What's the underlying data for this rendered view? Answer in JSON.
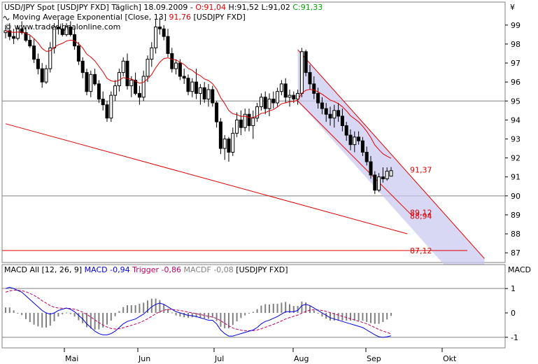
{
  "header": {
    "line1": {
      "prefix": "USD/JPY Spot [USDJPY FXD] Täglich] 18.09.2009 -",
      "open": "O:91,04",
      "high": "H:91,52",
      "low": "L:91,02",
      "close": "C:91,33"
    },
    "line2": {
      "prefix": "Moving Average Exponential [Close, 13]",
      "value": "91,76",
      "suffix": "[USDJPY FXD]"
    },
    "line3": "© www.tradesignalonline.com"
  },
  "macd_header": {
    "name": "MACD All [12, 26, 9]",
    "macd": "MACD -0,94",
    "trigger": "Trigger -0,86",
    "macdf": "MACDF -0,08",
    "symbol": "[USDJPY FXD]"
  },
  "colors": {
    "candle": "#000000",
    "ema": "#e00000",
    "trendline": "#e00000",
    "channel_fill": "#c8c8f0",
    "macd": "#0000e0",
    "trigger": "#c00060",
    "histogram": "#808080",
    "gridline": "#808080"
  },
  "chart_data": [
    {
      "type": "candlestick",
      "title": "USD/JPY Spot [USDJPY FXD] Täglich",
      "y_axis_label": "¥",
      "ylim": [
        86.6,
        100.1
      ],
      "y_ticks": [
        87,
        88,
        89,
        90,
        91,
        92,
        93,
        94,
        95,
        96,
        97,
        98,
        99
      ],
      "y_tick_labels": [
        "87",
        "88",
        "89",
        "90",
        "91",
        "92",
        "93",
        "94",
        "95",
        "96",
        "97",
        "98",
        "99"
      ],
      "x_month_labels": [
        "Mai",
        "Jun",
        "Jul",
        "Aug",
        "Sep",
        "Okt"
      ],
      "reference_lines": [
        95,
        90
      ],
      "annotations": [
        {
          "text": "91,37",
          "value": 91.37
        },
        {
          "text": "89,12",
          "value": 89.12
        },
        {
          "text": "88,94",
          "value": 88.94
        },
        {
          "text": "87,12",
          "value": 87.12
        }
      ],
      "ema_last": 91.76,
      "candles": [
        [
          98.6,
          99.0,
          98.3,
          98.7
        ],
        [
          98.7,
          99.1,
          98.2,
          98.4
        ],
        [
          98.4,
          98.8,
          98.0,
          98.3
        ],
        [
          98.3,
          99.0,
          98.2,
          98.8
        ],
        [
          98.8,
          99.2,
          98.5,
          98.6
        ],
        [
          98.6,
          98.9,
          98.1,
          98.2
        ],
        [
          98.2,
          98.5,
          97.8,
          97.9
        ],
        [
          97.9,
          98.3,
          97.0,
          97.2
        ],
        [
          97.2,
          97.5,
          96.4,
          96.7
        ],
        [
          96.7,
          97.0,
          95.7,
          96.0
        ],
        [
          96.0,
          96.9,
          95.9,
          96.7
        ],
        [
          96.7,
          98.1,
          96.5,
          97.8
        ],
        [
          97.8,
          99.1,
          97.5,
          98.9
        ],
        [
          98.9,
          99.3,
          98.5,
          98.8
        ],
        [
          98.8,
          99.1,
          98.4,
          98.5
        ],
        [
          98.5,
          99.1,
          98.4,
          98.9
        ],
        [
          98.9,
          99.2,
          98.4,
          98.5
        ],
        [
          98.5,
          98.8,
          97.7,
          97.9
        ],
        [
          97.9,
          98.1,
          96.9,
          97.1
        ],
        [
          97.1,
          97.3,
          96.2,
          96.5
        ],
        [
          96.5,
          96.7,
          95.3,
          95.5
        ],
        [
          95.5,
          96.6,
          95.2,
          96.4
        ],
        [
          96.4,
          96.7,
          95.8,
          95.9
        ],
        [
          95.9,
          96.1,
          94.9,
          95.1
        ],
        [
          95.1,
          95.5,
          94.5,
          94.8
        ],
        [
          94.8,
          95.0,
          93.9,
          94.1
        ],
        [
          94.1,
          95.5,
          93.9,
          95.3
        ],
        [
          95.3,
          96.1,
          95.0,
          95.8
        ],
        [
          95.8,
          96.7,
          95.5,
          96.5
        ],
        [
          96.5,
          97.3,
          96.3,
          97.1
        ],
        [
          97.1,
          97.5,
          95.6,
          95.8
        ],
        [
          95.8,
          96.3,
          95.2,
          96.1
        ],
        [
          96.1,
          96.5,
          95.3,
          95.4
        ],
        [
          95.4,
          95.8,
          94.8,
          95.2
        ],
        [
          95.2,
          96.6,
          95.0,
          96.3
        ],
        [
          96.3,
          97.4,
          96.0,
          97.2
        ],
        [
          97.2,
          98.1,
          96.8,
          97.8
        ],
        [
          97.8,
          99.3,
          97.5,
          98.9
        ],
        [
          98.9,
          99.4,
          98.5,
          98.8
        ],
        [
          98.8,
          99.0,
          98.2,
          98.4
        ],
        [
          98.4,
          98.8,
          97.3,
          97.5
        ],
        [
          97.5,
          97.8,
          96.5,
          96.7
        ],
        [
          96.7,
          97.2,
          96.4,
          97.0
        ],
        [
          97.0,
          97.2,
          96.1,
          96.3
        ],
        [
          96.3,
          96.7,
          95.9,
          96.2
        ],
        [
          96.2,
          96.4,
          95.3,
          95.5
        ],
        [
          95.5,
          96.2,
          95.2,
          96.0
        ],
        [
          96.0,
          96.7,
          95.1,
          95.4
        ],
        [
          95.4,
          95.9,
          94.8,
          95.7
        ],
        [
          95.7,
          96.0,
          94.9,
          95.1
        ],
        [
          95.1,
          95.9,
          94.7,
          95.6
        ],
        [
          95.6,
          95.8,
          94.7,
          94.9
        ],
        [
          94.9,
          95.0,
          93.6,
          93.9
        ],
        [
          93.9,
          94.1,
          92.2,
          92.5
        ],
        [
          92.5,
          93.2,
          91.9,
          93.0
        ],
        [
          93.0,
          93.1,
          91.8,
          92.3
        ],
        [
          92.3,
          93.6,
          92.1,
          93.3
        ],
        [
          93.3,
          94.4,
          93.1,
          94.0
        ],
        [
          94.0,
          94.5,
          93.2,
          93.6
        ],
        [
          93.6,
          94.6,
          93.4,
          94.3
        ],
        [
          94.3,
          94.6,
          93.4,
          93.7
        ],
        [
          93.7,
          94.5,
          93.0,
          94.1
        ],
        [
          94.1,
          94.9,
          93.9,
          94.7
        ],
        [
          94.7,
          95.4,
          94.5,
          95.2
        ],
        [
          95.2,
          95.5,
          94.3,
          94.6
        ],
        [
          94.6,
          95.4,
          94.2,
          95.1
        ],
        [
          95.1,
          95.5,
          94.6,
          94.9
        ],
        [
          94.9,
          95.7,
          94.7,
          95.5
        ],
        [
          95.5,
          96.1,
          95.3,
          95.9
        ],
        [
          95.9,
          96.2,
          94.9,
          95.2
        ],
        [
          95.2,
          95.6,
          94.7,
          95.3
        ],
        [
          95.3,
          95.5,
          94.9,
          95.1
        ],
        [
          95.1,
          95.6,
          94.8,
          95.4
        ],
        [
          95.4,
          97.8,
          95.2,
          97.6
        ],
        [
          97.6,
          97.7,
          96.3,
          96.5
        ],
        [
          96.5,
          96.9,
          95.6,
          95.9
        ],
        [
          95.9,
          96.3,
          95.1,
          95.4
        ],
        [
          95.4,
          95.7,
          94.6,
          94.9
        ],
        [
          94.9,
          95.2,
          94.3,
          94.6
        ],
        [
          94.6,
          94.9,
          93.9,
          94.3
        ],
        [
          94.3,
          94.7,
          93.7,
          94.1
        ],
        [
          94.1,
          94.8,
          93.6,
          94.5
        ],
        [
          94.5,
          94.9,
          93.9,
          94.2
        ],
        [
          94.2,
          94.6,
          93.4,
          93.7
        ],
        [
          93.7,
          93.9,
          92.9,
          93.2
        ],
        [
          93.2,
          93.5,
          92.4,
          92.7
        ],
        [
          92.7,
          93.4,
          92.3,
          93.1
        ],
        [
          93.1,
          93.4,
          92.7,
          92.9
        ],
        [
          92.9,
          93.1,
          92.1,
          92.3
        ],
        [
          92.3,
          92.6,
          91.6,
          91.8
        ],
        [
          91.8,
          92.1,
          90.9,
          91.1
        ],
        [
          91.1,
          91.3,
          90.1,
          90.3
        ],
        [
          90.3,
          91.2,
          90.2,
          91.0
        ],
        [
          91.0,
          91.5,
          90.7,
          90.9
        ],
        [
          90.9,
          91.5,
          90.8,
          91.3
        ],
        [
          91.04,
          91.52,
          91.02,
          91.33
        ]
      ],
      "trendlines": [
        {
          "from": [
            0,
            93.8
          ],
          "to": [
            99,
            88.0
          ]
        },
        {
          "from": [
            72,
            97.7
          ],
          "to": [
            118,
            86.7
          ]
        },
        {
          "from": [
            72,
            95.0
          ],
          "to": [
            100,
            89.0
          ]
        }
      ]
    },
    {
      "type": "line",
      "title": "MACD All [12, 26, 9]",
      "y_axis_label": "MACD",
      "ylim": [
        -1.35,
        1.35
      ],
      "y_ticks": [
        -1,
        0,
        1
      ],
      "y_tick_labels": [
        "-1",
        "0",
        "1"
      ],
      "series": [
        {
          "name": "MACD",
          "values": [
            1.0,
            1.05,
            1.0,
            0.92,
            0.85,
            0.7,
            0.55,
            0.4,
            0.25,
            0.1,
            0.0,
            -0.05,
            0.0,
            0.1,
            0.15,
            0.2,
            0.15,
            0.05,
            -0.1,
            -0.25,
            -0.45,
            -0.6,
            -0.75,
            -0.85,
            -0.9,
            -0.9,
            -0.85,
            -0.75,
            -0.6,
            -0.45,
            -0.35,
            -0.3,
            -0.25,
            -0.15,
            -0.05,
            0.1,
            0.25,
            0.35,
            0.4,
            0.35,
            0.25,
            0.15,
            0.05,
            0.0,
            -0.05,
            -0.1,
            -0.12,
            -0.15,
            -0.2,
            -0.25,
            -0.3,
            -0.3,
            -0.45,
            -0.7,
            -0.85,
            -0.95,
            -0.95,
            -0.9,
            -0.85,
            -0.8,
            -0.75,
            -0.7,
            -0.6,
            -0.45,
            -0.35,
            -0.3,
            -0.22,
            -0.15,
            -0.05,
            0.05,
            0.05,
            0.05,
            0.1,
            0.3,
            0.35,
            0.3,
            0.2,
            0.1,
            0.0,
            -0.1,
            -0.2,
            -0.25,
            -0.3,
            -0.35,
            -0.4,
            -0.45,
            -0.5,
            -0.55,
            -0.6,
            -0.7,
            -0.8,
            -0.9,
            -0.98,
            -1.0,
            -0.98,
            -0.94
          ]
        },
        {
          "name": "Trigger",
          "values": [
            0.85,
            0.9,
            0.93,
            0.93,
            0.91,
            0.87,
            0.8,
            0.72,
            0.62,
            0.5,
            0.4,
            0.3,
            0.23,
            0.2,
            0.19,
            0.19,
            0.18,
            0.15,
            0.1,
            0.03,
            -0.06,
            -0.17,
            -0.29,
            -0.4,
            -0.5,
            -0.58,
            -0.64,
            -0.66,
            -0.65,
            -0.61,
            -0.56,
            -0.51,
            -0.46,
            -0.4,
            -0.33,
            -0.24,
            -0.14,
            -0.04,
            0.05,
            0.11,
            0.14,
            0.14,
            0.12,
            0.1,
            0.07,
            0.03,
            0.0,
            -0.03,
            -0.07,
            -0.1,
            -0.14,
            -0.17,
            -0.23,
            -0.32,
            -0.43,
            -0.53,
            -0.62,
            -0.67,
            -0.71,
            -0.73,
            -0.73,
            -0.73,
            -0.7,
            -0.65,
            -0.59,
            -0.53,
            -0.47,
            -0.4,
            -0.33,
            -0.25,
            -0.19,
            -0.14,
            -0.09,
            -0.01,
            0.06,
            0.11,
            0.13,
            0.12,
            0.1,
            0.06,
            0.01,
            -0.04,
            -0.09,
            -0.14,
            -0.19,
            -0.24,
            -0.29,
            -0.34,
            -0.39,
            -0.45,
            -0.52,
            -0.6,
            -0.68,
            -0.75,
            -0.8,
            -0.86
          ]
        }
      ],
      "histogram": "MACDF = MACD - Trigger"
    }
  ]
}
